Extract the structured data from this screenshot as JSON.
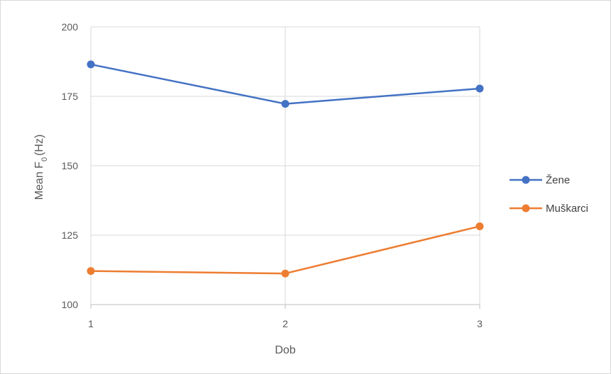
{
  "chart_data": {
    "type": "line",
    "x": [
      1,
      2,
      3
    ],
    "x_tick_labels": [
      "1",
      "2",
      "3"
    ],
    "xlabel": "Dob",
    "ylabel_main": "Mean F",
    "ylabel_subscript": "0",
    "ylabel_unit": "(Hz)",
    "ylim": [
      100,
      200
    ],
    "y_ticks": [
      100,
      125,
      150,
      175,
      200
    ],
    "y_tick_labels": [
      "100",
      "125",
      "150",
      "175",
      "200"
    ],
    "grid": true,
    "legend_position": "right",
    "series": [
      {
        "name": "Žene",
        "color": "#4472c4",
        "values": [
          186.5,
          172.3,
          177.8
        ]
      },
      {
        "name": "Muškarci",
        "color": "#ed7d31",
        "values": [
          112.1,
          111.2,
          128.2
        ]
      }
    ]
  }
}
